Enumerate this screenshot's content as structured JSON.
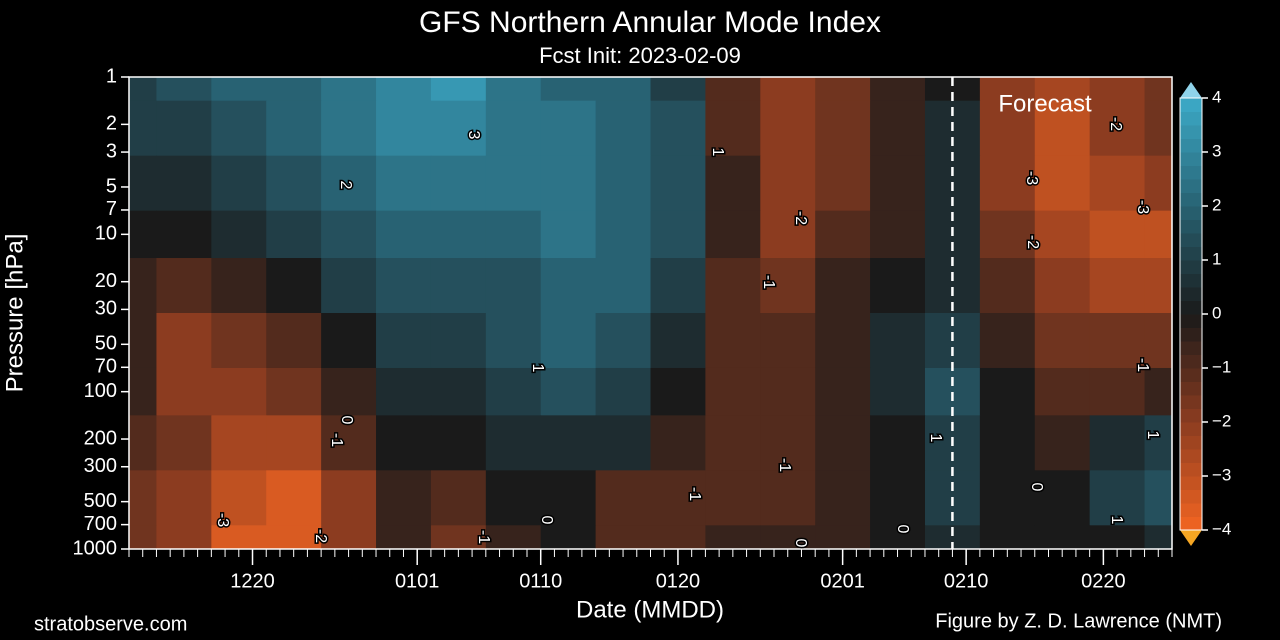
{
  "chart_data": {
    "type": "contour",
    "title": "GFS Northern Annular Mode Index",
    "subtitle": "Fcst Init: 2023-02-09",
    "xlabel": "Date (MMDD)",
    "ylabel": "Pressure [hPa]",
    "xlim": [
      0,
      76
    ],
    "xticks": [
      {
        "value": 9,
        "label": "1220"
      },
      {
        "value": 21,
        "label": "0101"
      },
      {
        "value": 30,
        "label": "0110"
      },
      {
        "value": 40,
        "label": "0120"
      },
      {
        "value": 52,
        "label": "0201"
      },
      {
        "value": 61,
        "label": "0210"
      },
      {
        "value": 71,
        "label": "0220"
      }
    ],
    "ylim": [
      1000,
      1
    ],
    "yscale": "log",
    "yticks": [
      1,
      2,
      3,
      5,
      7,
      10,
      20,
      30,
      50,
      70,
      100,
      200,
      300,
      500,
      700,
      1000
    ],
    "x": [
      0,
      4,
      8,
      12,
      16,
      20,
      24,
      28,
      32,
      36,
      40,
      44,
      48,
      52,
      56,
      60,
      64,
      68,
      72,
      76
    ],
    "y": [
      1,
      2,
      5,
      10,
      20,
      50,
      100,
      200,
      500,
      1000
    ],
    "z": [
      [
        1,
        1.5,
        2,
        2,
        2.5,
        3,
        3.5,
        2.5,
        2,
        2,
        1,
        -1,
        -2,
        -1.5,
        -0.5,
        0,
        -2,
        -2.5,
        -2,
        -1.5
      ],
      [
        1,
        1,
        1.5,
        2,
        2.5,
        3,
        3,
        2.5,
        2.5,
        2,
        1.5,
        -1,
        -2,
        -1.5,
        -0.5,
        0.5,
        -2,
        -3,
        -2,
        -1.5
      ],
      [
        0.5,
        0.5,
        1,
        1.5,
        2,
        2.5,
        2.5,
        2.5,
        2.5,
        2,
        1.5,
        -0.5,
        -2,
        -1.5,
        -0.5,
        0.5,
        -2,
        -3,
        -2.5,
        -2
      ],
      [
        0,
        0,
        0.5,
        1,
        1.5,
        2,
        2,
        2,
        2.5,
        2,
        1.5,
        -0.5,
        -2,
        -1,
        -0.5,
        0.5,
        -1.5,
        -2.5,
        -3,
        -3
      ],
      [
        -0.5,
        -1,
        -0.5,
        0,
        1,
        1.5,
        1.5,
        1.5,
        2,
        2,
        1,
        -1,
        -1.5,
        -0.5,
        0,
        0.5,
        -1,
        -2,
        -2.5,
        -2.5
      ],
      [
        -0.5,
        -2,
        -1.5,
        -1,
        0,
        1,
        1,
        1.5,
        2,
        1.5,
        0.5,
        -1,
        -1,
        -0.5,
        0.5,
        1,
        -0.5,
        -1.5,
        -1.5,
        -1.5
      ],
      [
        -0.5,
        -2,
        -2,
        -1.5,
        -0.5,
        0.5,
        0.5,
        1,
        1.5,
        1,
        0,
        -1,
        -1,
        -0.5,
        0.5,
        1.5,
        0,
        -1,
        -1,
        -0.5
      ],
      [
        -1,
        -1.5,
        -2.5,
        -2.5,
        -1,
        0,
        0,
        0.5,
        0.5,
        0.5,
        -0.5,
        -1,
        -1,
        -0.5,
        0,
        1,
        0,
        -0.5,
        0.5,
        1
      ],
      [
        -1.5,
        -2,
        -3,
        -3.5,
        -2,
        -0.5,
        -1,
        0,
        0,
        -1,
        -1,
        -1,
        -1,
        -0.5,
        0,
        1,
        0,
        0,
        1,
        1.5
      ],
      [
        -1.5,
        -2,
        -3.5,
        -3.5,
        -2,
        -0.5,
        -1.5,
        -0.5,
        0,
        -1,
        -1,
        -0.5,
        -0.5,
        -0.5,
        0,
        0.5,
        0,
        0,
        0,
        0.5
      ]
    ],
    "contour_labels": [
      -3,
      -2,
      -1,
      0,
      2,
      3,
      1,
      0,
      -1,
      1,
      -2,
      -1,
      -1,
      -1,
      0,
      1,
      0,
      -3,
      -2,
      -3,
      -2,
      -1,
      0,
      1,
      1
    ],
    "forecast_start": 60,
    "forecast_label": "Forecast",
    "colorbar_ticks": [
      4,
      3,
      2,
      1,
      0,
      {
        "value": -1,
        "label": "−1"
      },
      {
        "value": -2,
        "label": "−2"
      },
      {
        "value": -3,
        "label": "−3"
      },
      {
        "value": -4,
        "label": "−4"
      }
    ],
    "colorbar_lim": [
      -4,
      4
    ],
    "source": "stratobserve.com",
    "credit": "Figure by Z. D. Lawrence (NMT)"
  }
}
